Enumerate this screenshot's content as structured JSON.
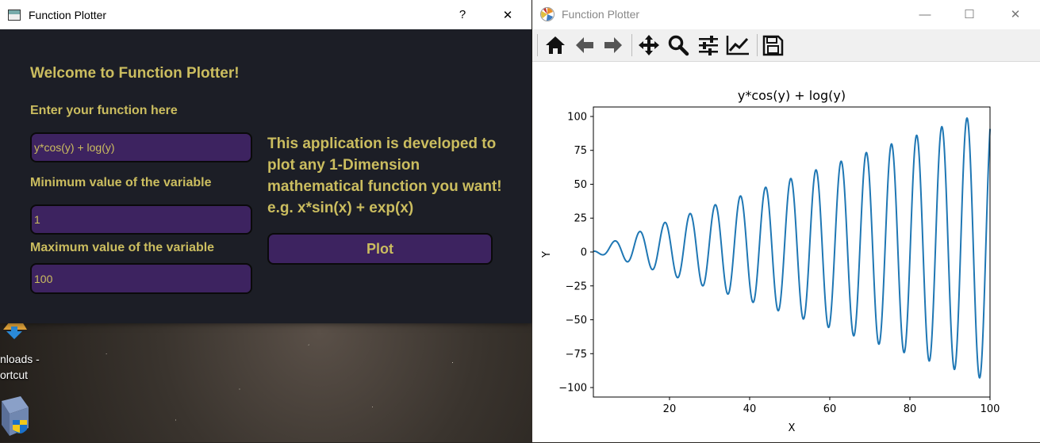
{
  "left_window": {
    "title": "Function Plotter",
    "help_label": "?",
    "close_label": "✕",
    "welcome": "Welcome to Function Plotter!",
    "function_label": "Enter your function here",
    "function_value": "y*cos(y) + log(y)",
    "min_label": "Minimum value of the variable",
    "min_value": "1",
    "max_label": "Maximum value of the variable",
    "max_value": "100",
    "description": "This application is developed to plot any 1-Dimension mathematical function you want! e.g. x*sin(x) + exp(x)",
    "plot_button": "Plot"
  },
  "desktop": {
    "icon1_label_line1": "nloads -",
    "icon1_label_line2": "ortcut"
  },
  "right_window": {
    "title": "Function Plotter",
    "minimize_label": "—",
    "maximize_label": "☐",
    "close_label": "✕",
    "toolbar": [
      "home-icon",
      "back-icon",
      "forward-icon",
      "pan-icon",
      "zoom-icon",
      "configure-subplots-icon",
      "edit-axis-icon",
      "save-icon"
    ]
  },
  "chart_data": {
    "type": "line",
    "title": "y*cos(y) + log(y)",
    "xlabel": "X",
    "ylabel": "Y",
    "function": "y*cos(y) + log(y)",
    "xlim": [
      1,
      100
    ],
    "ylim": [
      -107,
      107
    ],
    "xticks": [
      20,
      40,
      60,
      80,
      100
    ],
    "yticks": [
      100,
      75,
      50,
      25,
      0,
      -25,
      -50,
      -75,
      -100
    ],
    "ytick_labels": [
      "100",
      "75",
      "50",
      "25",
      "0",
      "−25",
      "−50",
      "−75",
      "−100"
    ],
    "line_color": "#1f77b4",
    "grid": false
  }
}
